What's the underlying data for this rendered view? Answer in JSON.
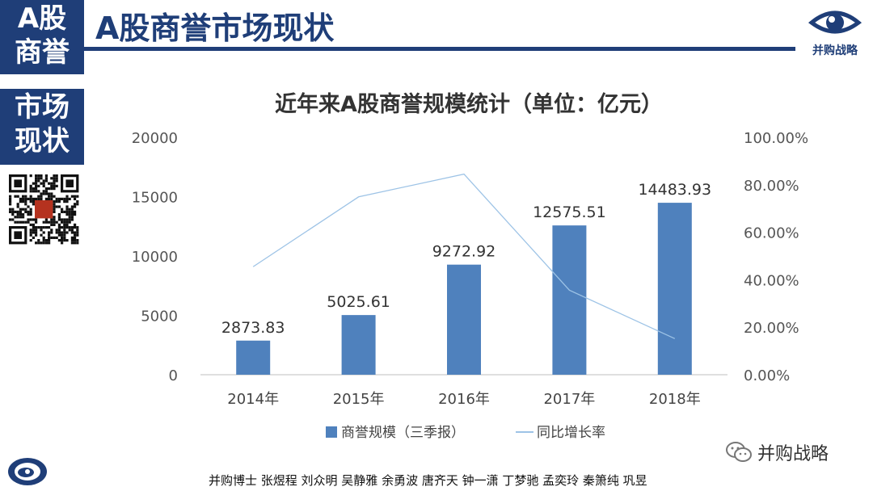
{
  "sidebar": {
    "box1": [
      "A股",
      "商誉"
    ],
    "box2": [
      "市场",
      "现状"
    ]
  },
  "header": {
    "title": "A股商誉市场现状",
    "logo_caption": "并购战略"
  },
  "colors": {
    "navy": "#1f3e78",
    "bar": "#4f81bd",
    "line": "#9dc3e6"
  },
  "wechat": {
    "label": "并购战略",
    "icon": "wechat-icon"
  },
  "authors": "并购博士 张煜程 刘众明 吴静雅 余勇波 唐齐天 钟一潇 丁梦驰 孟奕玲 秦箫纯 巩昱",
  "chart_data": {
    "type": "bar",
    "title": "近年来A股商誉规模统计（单位：亿元）",
    "categories": [
      "2014年",
      "2015年",
      "2016年",
      "2017年",
      "2018年"
    ],
    "series": [
      {
        "name": "商誉规模（三季报）",
        "type": "bar",
        "axis": "left",
        "values": [
          2873.83,
          5025.61,
          9272.92,
          12575.51,
          14483.93
        ],
        "labels": [
          "2873.83",
          "5025.61",
          "9272.92",
          "12575.51",
          "14483.93"
        ]
      },
      {
        "name": "同比增长率",
        "type": "line",
        "axis": "right",
        "values": [
          45.5,
          74.9,
          84.5,
          35.6,
          15.2
        ]
      }
    ],
    "ylim": [
      0,
      20000
    ],
    "yticks": [
      "0",
      "5000",
      "10000",
      "15000",
      "20000"
    ],
    "y2lim": [
      0,
      100
    ],
    "y2ticks": [
      "0.00%",
      "20.00%",
      "40.00%",
      "60.00%",
      "80.00%",
      "100.00%"
    ],
    "legend_position": "bottom"
  }
}
